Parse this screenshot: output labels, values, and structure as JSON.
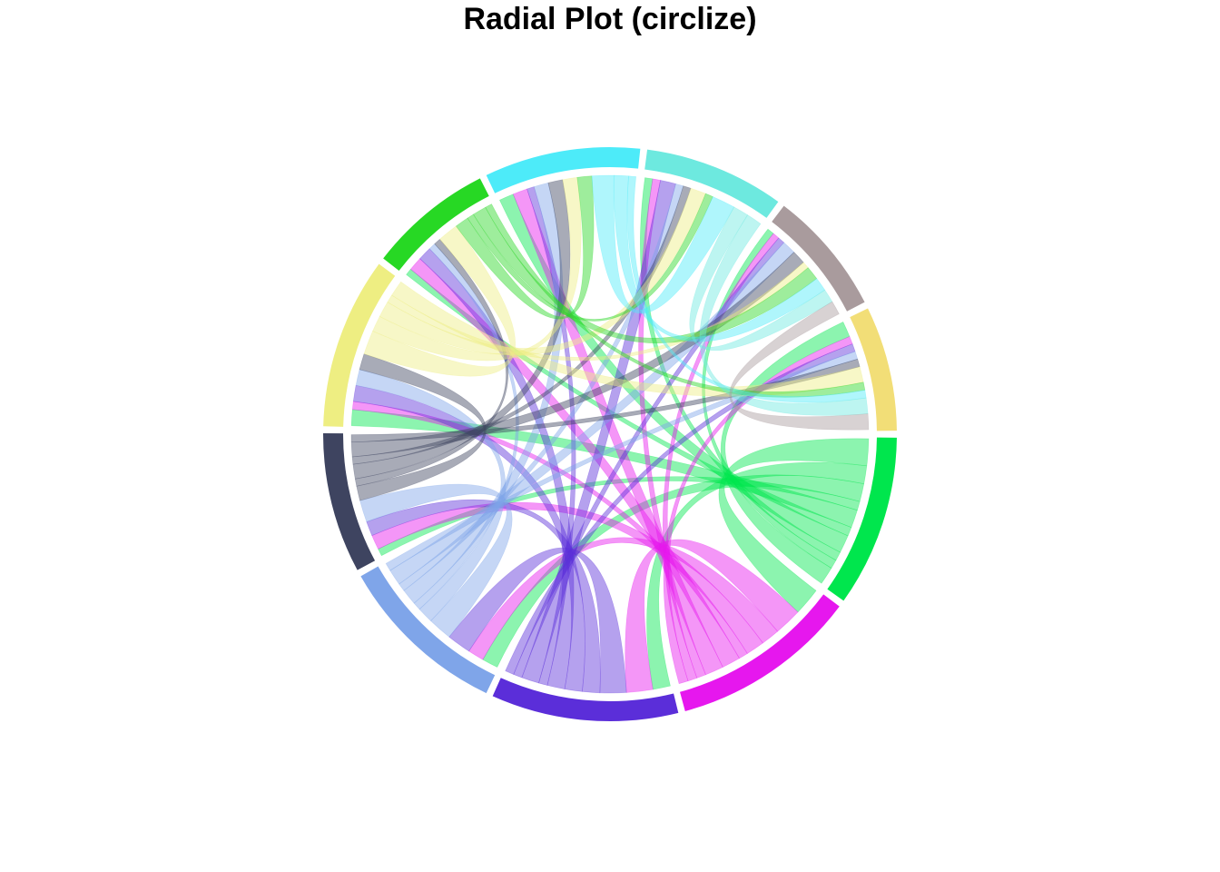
{
  "chart_data": {
    "type": "chord",
    "title": "Radial Plot (circlize)",
    "sectors": [
      {
        "color": "#00E64D",
        "weight": 11
      },
      {
        "color": "#E617EE",
        "weight": 12
      },
      {
        "color": "#5B2ED9",
        "weight": 12
      },
      {
        "color": "#7FA5E9",
        "weight": 11
      },
      {
        "color": "#3E4460",
        "weight": 9
      },
      {
        "color": "#EEEE82",
        "weight": 11
      },
      {
        "color": "#27D824",
        "weight": 8
      },
      {
        "color": "#4DEBF9",
        "weight": 10
      },
      {
        "color": "#6DE9DF",
        "weight": 9
      },
      {
        "color": "#A99B9D",
        "weight": 8
      },
      {
        "color": "#F2DE77",
        "weight": 8
      }
    ],
    "links": [
      [
        0,
        1,
        3
      ],
      [
        0,
        2,
        2
      ],
      [
        0,
        3,
        2
      ],
      [
        0,
        4,
        1
      ],
      [
        0,
        5,
        2
      ],
      [
        0,
        6,
        1
      ],
      [
        0,
        7,
        2
      ],
      [
        0,
        8,
        1
      ],
      [
        0,
        9,
        1
      ],
      [
        0,
        10,
        2
      ],
      [
        1,
        2,
        3
      ],
      [
        1,
        3,
        2
      ],
      [
        1,
        4,
        2
      ],
      [
        1,
        5,
        1
      ],
      [
        1,
        6,
        2
      ],
      [
        1,
        7,
        2
      ],
      [
        1,
        8,
        1
      ],
      [
        1,
        9,
        1
      ],
      [
        1,
        10,
        1
      ],
      [
        2,
        3,
        3
      ],
      [
        2,
        4,
        2
      ],
      [
        2,
        5,
        2
      ],
      [
        2,
        6,
        2
      ],
      [
        2,
        7,
        1
      ],
      [
        2,
        8,
        2
      ],
      [
        2,
        9,
        1
      ],
      [
        2,
        10,
        1
      ],
      [
        3,
        4,
        3
      ],
      [
        3,
        5,
        2
      ],
      [
        3,
        6,
        1
      ],
      [
        3,
        7,
        2
      ],
      [
        3,
        8,
        1
      ],
      [
        3,
        9,
        2
      ],
      [
        3,
        10,
        1
      ],
      [
        4,
        5,
        2
      ],
      [
        4,
        6,
        1
      ],
      [
        4,
        7,
        2
      ],
      [
        4,
        8,
        1
      ],
      [
        4,
        9,
        2
      ],
      [
        4,
        10,
        1
      ],
      [
        5,
        6,
        3
      ],
      [
        5,
        7,
        2
      ],
      [
        5,
        8,
        2
      ],
      [
        5,
        9,
        1
      ],
      [
        5,
        10,
        2
      ],
      [
        6,
        7,
        2
      ],
      [
        6,
        8,
        1
      ],
      [
        6,
        9,
        2
      ],
      [
        6,
        10,
        1
      ],
      [
        7,
        8,
        3
      ],
      [
        7,
        9,
        2
      ],
      [
        7,
        10,
        1
      ],
      [
        8,
        9,
        2
      ],
      [
        8,
        10,
        2
      ],
      [
        9,
        10,
        2
      ]
    ]
  }
}
